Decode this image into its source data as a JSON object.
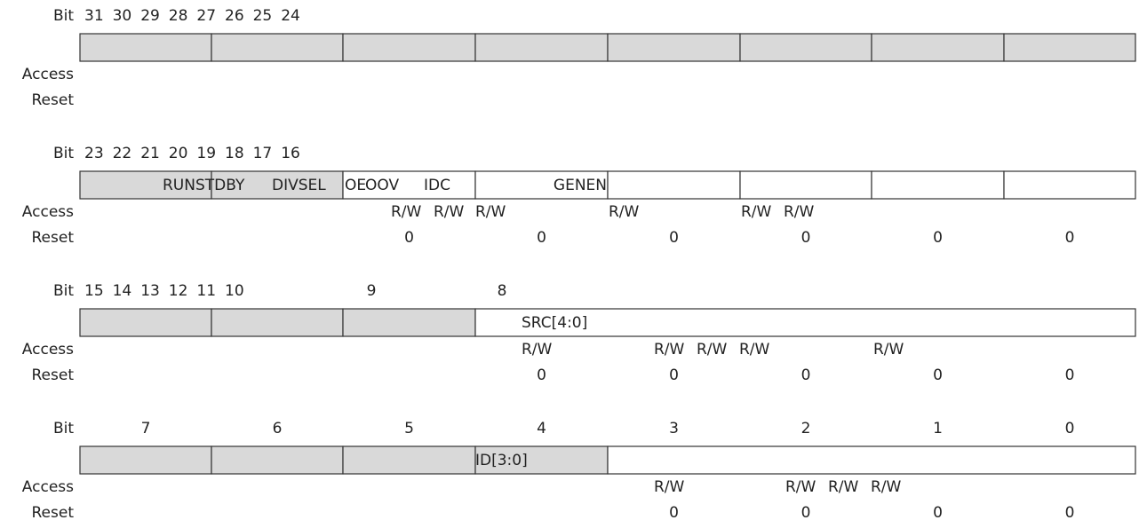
{
  "sections": [
    {
      "bit_label": "Bit",
      "bits": [
        "31",
        "30",
        "29",
        "28",
        "27",
        "26",
        "25",
        "24"
      ],
      "fields": [],
      "access_label": "Access",
      "access": [],
      "reset_label": "Reset",
      "reset": []
    },
    {
      "bit_label": "Bit",
      "bits": [
        "23",
        "22",
        "21",
        "20",
        "19",
        "18",
        "17",
        "16"
      ],
      "fields": [
        "RUNSTDBY",
        "DIVSEL",
        "OE",
        "OOV",
        "IDC",
        "GENEN"
      ],
      "access_label": "Access",
      "access": [
        "R/W",
        "R/W",
        "R/W",
        "R/W",
        "R/W",
        "R/W"
      ],
      "reset_label": "Reset",
      "reset": [
        "0",
        "0",
        "0",
        "0",
        "0",
        "0"
      ]
    },
    {
      "bit_label": "Bit",
      "bits": [
        "15",
        "14",
        "13",
        "12",
        "11",
        "10",
        "9",
        "8"
      ],
      "fields": [
        "SRC[4:0]"
      ],
      "access_label": "Access",
      "access": [
        "R/W",
        "R/W",
        "R/W",
        "R/W",
        "R/W"
      ],
      "reset_label": "Reset",
      "reset": [
        "0",
        "0",
        "0",
        "0",
        "0"
      ]
    },
    {
      "bit_label": "Bit",
      "bits": [
        "7",
        "6",
        "5",
        "4",
        "3",
        "2",
        "1",
        "0"
      ],
      "fields": [
        "ID[3:0]"
      ],
      "access_label": "Access",
      "access": [
        "R/W",
        "R/W",
        "R/W",
        "R/W"
      ],
      "reset_label": "Reset",
      "reset": [
        "0",
        "0",
        "0",
        "0"
      ]
    }
  ]
}
